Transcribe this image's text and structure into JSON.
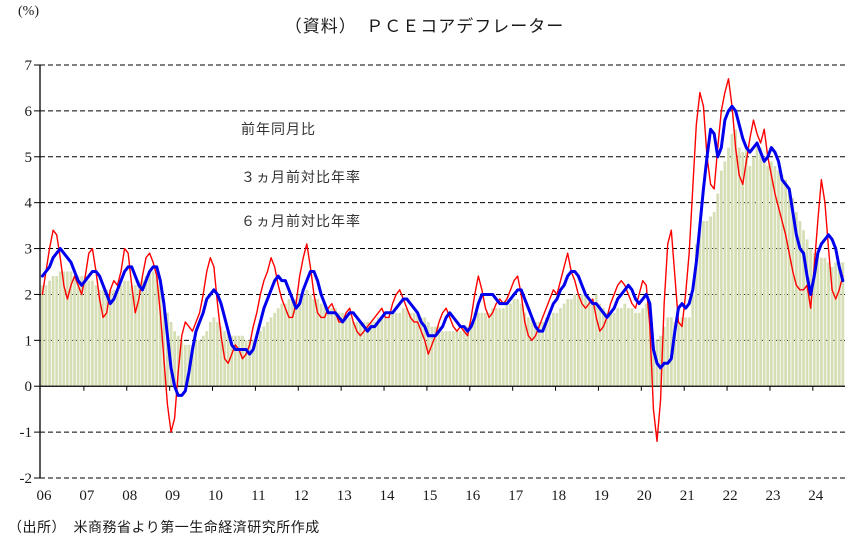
{
  "chart_data": {
    "type": "area+line",
    "title": "（資料）　ＰＣＥコアデフレーター",
    "unit_label": "(%)",
    "source": "（出所）　米商務省より第一生命経済研究所作成",
    "x_start": "2006-01",
    "x_end": "2024-09",
    "ylim": [
      -2,
      7
    ],
    "y_ticks": [
      -2,
      -1,
      0,
      1,
      2,
      3,
      4,
      5,
      6,
      7
    ],
    "x_tick_labels": [
      "06",
      "07",
      "08",
      "09",
      "10",
      "11",
      "12",
      "13",
      "14",
      "15",
      "16",
      "17",
      "18",
      "19",
      "20",
      "21",
      "22",
      "23",
      "24"
    ],
    "grid": "dashed-horizontal",
    "legend_position": "inside-top-left",
    "colors": {
      "area": "#D6DEB6",
      "line3m": "#FF0000",
      "line6m": "#0000EE",
      "axis": "#000000"
    },
    "series": [
      {
        "name": "前年同月比",
        "type": "bar",
        "color": "#D6DEB6",
        "values": [
          2.2,
          2.2,
          2.3,
          2.4,
          2.4,
          2.5,
          2.5,
          2.5,
          2.5,
          2.4,
          2.4,
          2.4,
          2.4,
          2.3,
          2.3,
          2.2,
          2.1,
          2.1,
          2.1,
          2.1,
          2.1,
          2.1,
          2.2,
          2.3,
          2.3,
          2.2,
          2.2,
          2.3,
          2.3,
          2.4,
          2.5,
          2.5,
          2.4,
          2.2,
          1.9,
          1.6,
          1.4,
          1.2,
          1.1,
          1.0,
          0.9,
          0.9,
          0.9,
          1.0,
          1.0,
          1.1,
          1.2,
          1.4,
          1.5,
          1.4,
          1.3,
          1.2,
          1.2,
          1.1,
          1.1,
          1.1,
          1.1,
          1.0,
          1.0,
          1.0,
          1.1,
          1.2,
          1.3,
          1.4,
          1.5,
          1.6,
          1.7,
          1.8,
          1.8,
          1.9,
          1.9,
          1.9,
          2.0,
          2.0,
          2.1,
          2.0,
          1.9,
          1.9,
          1.8,
          1.8,
          1.7,
          1.7,
          1.7,
          1.6,
          1.6,
          1.5,
          1.5,
          1.4,
          1.4,
          1.4,
          1.4,
          1.4,
          1.4,
          1.4,
          1.5,
          1.5,
          1.5,
          1.5,
          1.6,
          1.6,
          1.6,
          1.7,
          1.7,
          1.6,
          1.6,
          1.6,
          1.5,
          1.5,
          1.4,
          1.3,
          1.3,
          1.3,
          1.2,
          1.2,
          1.2,
          1.2,
          1.2,
          1.2,
          1.3,
          1.3,
          1.4,
          1.6,
          1.6,
          1.6,
          1.6,
          1.6,
          1.7,
          1.7,
          1.7,
          1.7,
          1.8,
          1.8,
          1.9,
          1.9,
          1.8,
          1.6,
          1.5,
          1.5,
          1.4,
          1.4,
          1.4,
          1.5,
          1.5,
          1.6,
          1.6,
          1.7,
          1.8,
          1.9,
          1.9,
          2.0,
          2.0,
          2.0,
          2.0,
          1.9,
          1.9,
          2.0,
          1.8,
          1.7,
          1.6,
          1.6,
          1.6,
          1.7,
          1.7,
          1.8,
          1.7,
          1.7,
          1.6,
          1.6,
          1.7,
          1.8,
          1.7,
          0.9,
          1.0,
          1.1,
          1.3,
          1.5,
          1.5,
          1.4,
          1.4,
          1.5,
          1.5,
          1.5,
          2.0,
          3.1,
          3.5,
          3.6,
          3.6,
          3.7,
          3.8,
          4.2,
          4.7,
          4.9,
          5.2,
          5.5,
          5.6,
          5.2,
          5.1,
          5.2,
          4.8,
          5.0,
          5.3,
          5.2,
          5.0,
          4.8,
          4.9,
          4.8,
          4.7,
          4.6,
          4.5,
          4.2,
          4.1,
          3.8,
          3.6,
          3.4,
          3.2,
          3.0,
          2.9,
          2.9,
          2.8,
          2.8,
          2.7,
          2.6,
          2.7,
          2.7,
          2.7
        ]
      },
      {
        "name": "３ヵ月前対比年率",
        "type": "line",
        "color": "#FF0000",
        "stroke_width": 1.4,
        "values": [
          2.0,
          2.5,
          3.0,
          3.4,
          3.3,
          2.8,
          2.2,
          1.9,
          2.2,
          2.4,
          2.2,
          2.0,
          2.4,
          2.9,
          3.0,
          2.5,
          1.9,
          1.5,
          1.6,
          2.1,
          2.3,
          2.2,
          2.5,
          3.0,
          2.9,
          2.2,
          1.6,
          1.9,
          2.4,
          2.8,
          2.9,
          2.7,
          2.4,
          1.6,
          0.6,
          -0.4,
          -1.0,
          -0.7,
          0.3,
          1.1,
          1.4,
          1.3,
          1.2,
          1.4,
          1.6,
          2.0,
          2.5,
          2.8,
          2.6,
          1.8,
          1.1,
          0.6,
          0.5,
          0.7,
          0.9,
          0.8,
          0.6,
          0.7,
          0.9,
          1.3,
          1.6,
          2.0,
          2.3,
          2.5,
          2.8,
          2.6,
          2.2,
          1.9,
          1.7,
          1.5,
          1.5,
          1.8,
          2.4,
          2.8,
          3.1,
          2.6,
          2.0,
          1.6,
          1.5,
          1.5,
          1.7,
          1.8,
          1.6,
          1.4,
          1.4,
          1.6,
          1.7,
          1.4,
          1.2,
          1.1,
          1.2,
          1.3,
          1.4,
          1.5,
          1.6,
          1.7,
          1.5,
          1.5,
          1.8,
          2.0,
          2.1,
          1.9,
          1.7,
          1.5,
          1.4,
          1.4,
          1.2,
          1.0,
          0.7,
          0.9,
          1.1,
          1.4,
          1.6,
          1.7,
          1.5,
          1.3,
          1.2,
          1.3,
          1.2,
          1.1,
          1.5,
          2.0,
          2.4,
          2.1,
          1.7,
          1.5,
          1.6,
          1.8,
          1.9,
          1.8,
          1.9,
          2.1,
          2.3,
          2.4,
          2.0,
          1.4,
          1.1,
          1.0,
          1.1,
          1.3,
          1.5,
          1.7,
          1.9,
          2.1,
          2.0,
          2.3,
          2.6,
          2.9,
          2.5,
          2.3,
          2.0,
          1.8,
          1.7,
          1.8,
          1.9,
          1.5,
          1.2,
          1.3,
          1.5,
          1.8,
          2.0,
          2.2,
          2.3,
          2.2,
          2.0,
          1.8,
          1.7,
          2.0,
          2.3,
          2.2,
          1.3,
          -0.5,
          -1.2,
          -0.3,
          1.8,
          3.1,
          3.4,
          2.4,
          1.4,
          1.3,
          2.0,
          2.9,
          4.3,
          5.7,
          6.4,
          6.1,
          5.0,
          4.4,
          4.3,
          5.2,
          6.0,
          6.4,
          6.7,
          6.1,
          5.2,
          4.6,
          4.4,
          4.9,
          5.4,
          5.8,
          5.5,
          5.3,
          5.6,
          5.0,
          4.6,
          4.2,
          3.9,
          3.6,
          3.3,
          2.9,
          2.5,
          2.2,
          2.1,
          2.1,
          2.2,
          1.7,
          2.6,
          3.6,
          4.5,
          4.0,
          3.0,
          2.1,
          1.9,
          2.1,
          2.4
        ]
      },
      {
        "name": "６ヵ月前対比年率",
        "type": "line",
        "color": "#0000EE",
        "stroke_width": 3,
        "values": [
          2.4,
          2.5,
          2.6,
          2.8,
          2.9,
          3.0,
          2.9,
          2.8,
          2.7,
          2.5,
          2.3,
          2.2,
          2.3,
          2.4,
          2.5,
          2.5,
          2.4,
          2.2,
          2.0,
          1.8,
          1.9,
          2.1,
          2.3,
          2.5,
          2.6,
          2.6,
          2.4,
          2.2,
          2.1,
          2.3,
          2.5,
          2.6,
          2.6,
          2.3,
          1.8,
          1.1,
          0.4,
          0.0,
          -0.2,
          -0.2,
          -0.1,
          0.3,
          0.8,
          1.2,
          1.4,
          1.6,
          1.9,
          2.0,
          2.1,
          2.0,
          1.8,
          1.5,
          1.2,
          0.9,
          0.8,
          0.8,
          0.8,
          0.8,
          0.7,
          0.8,
          1.1,
          1.4,
          1.7,
          1.9,
          2.1,
          2.3,
          2.4,
          2.3,
          2.3,
          2.1,
          1.9,
          1.7,
          1.8,
          2.1,
          2.3,
          2.5,
          2.5,
          2.3,
          2.0,
          1.8,
          1.6,
          1.6,
          1.6,
          1.5,
          1.4,
          1.5,
          1.6,
          1.6,
          1.5,
          1.4,
          1.3,
          1.2,
          1.3,
          1.3,
          1.4,
          1.5,
          1.6,
          1.6,
          1.6,
          1.7,
          1.8,
          1.9,
          1.9,
          1.8,
          1.7,
          1.6,
          1.4,
          1.3,
          1.1,
          1.1,
          1.1,
          1.2,
          1.3,
          1.5,
          1.6,
          1.5,
          1.4,
          1.3,
          1.3,
          1.2,
          1.3,
          1.5,
          1.8,
          2.0,
          2.0,
          2.0,
          2.0,
          1.9,
          1.8,
          1.8,
          1.8,
          1.9,
          2.0,
          2.1,
          2.1,
          1.9,
          1.7,
          1.5,
          1.3,
          1.2,
          1.2,
          1.4,
          1.6,
          1.8,
          1.9,
          2.1,
          2.2,
          2.4,
          2.5,
          2.5,
          2.4,
          2.2,
          2.0,
          1.9,
          1.8,
          1.8,
          1.7,
          1.6,
          1.5,
          1.6,
          1.7,
          1.9,
          2.0,
          2.1,
          2.2,
          2.1,
          1.9,
          1.8,
          1.9,
          2.0,
          1.8,
          0.8,
          0.5,
          0.4,
          0.5,
          0.5,
          0.6,
          1.2,
          1.7,
          1.8,
          1.7,
          1.8,
          2.1,
          2.7,
          3.5,
          4.3,
          5.0,
          5.6,
          5.5,
          5.0,
          5.2,
          5.8,
          6.0,
          6.1,
          6.0,
          5.7,
          5.4,
          5.2,
          5.1,
          5.2,
          5.3,
          5.1,
          4.9,
          5.0,
          5.2,
          5.1,
          4.9,
          4.5,
          4.4,
          4.3,
          3.8,
          3.3,
          3.0,
          2.9,
          2.4,
          2.0,
          2.4,
          2.9,
          3.1,
          3.2,
          3.3,
          3.2,
          3.0,
          2.6,
          2.3
        ]
      }
    ]
  },
  "legend": {
    "items": [
      {
        "label": "前年同月比",
        "swatch": "area-swatch"
      },
      {
        "label": "３ヵ月前対比年率",
        "swatch": "thin-red-line-swatch"
      },
      {
        "label": "６ヵ月前対比年率",
        "swatch": "thick-blue-line-swatch"
      }
    ]
  }
}
